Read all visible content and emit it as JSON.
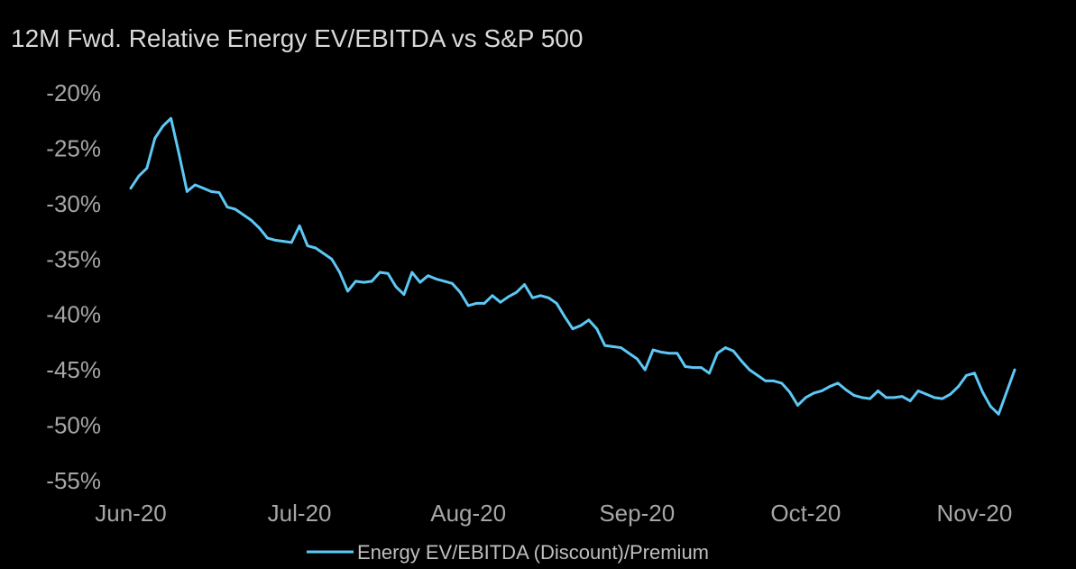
{
  "chart_data": {
    "type": "line",
    "title": "12M Fwd. Relative Energy EV/EBITDA vs S&P 500",
    "xlabel": "",
    "ylabel": "",
    "ylim": [
      -55,
      -20
    ],
    "y_tick_values": [
      -20,
      -25,
      -30,
      -35,
      -40,
      -45,
      -50,
      -55
    ],
    "y_tick_labels": [
      "-20%",
      "-25%",
      "-30%",
      "-35%",
      "-40%",
      "-45%",
      "-50%",
      "-55%"
    ],
    "x_tick_labels": [
      "Jun-20",
      "Jul-20",
      "Aug-20",
      "Sep-20",
      "Oct-20",
      "Nov-20"
    ],
    "x_tick_positions": [
      0,
      21,
      42,
      63,
      84,
      105
    ],
    "xlim": [
      0,
      110
    ],
    "grid": false,
    "legend_position": "bottom-center",
    "series": [
      {
        "name": "Energy EV/EBITDA (Discount)/Premium",
        "color": "#5cc8f5",
        "x": [
          0,
          1,
          2,
          3,
          4,
          5,
          6,
          7,
          8,
          9,
          10,
          11,
          12,
          13,
          14,
          15,
          16,
          17,
          18,
          19,
          20,
          21,
          22,
          23,
          24,
          25,
          26,
          27,
          28,
          29,
          30,
          31,
          32,
          33,
          34,
          35,
          36,
          37,
          38,
          39,
          40,
          41,
          42,
          43,
          44,
          45,
          46,
          47,
          48,
          49,
          50,
          51,
          52,
          53,
          54,
          55,
          56,
          57,
          58,
          59,
          60,
          61,
          62,
          63,
          64,
          65,
          66,
          67,
          68,
          69,
          70,
          71,
          72,
          73,
          74,
          75,
          76,
          77,
          78,
          79,
          80,
          81,
          82,
          83,
          84,
          85,
          86,
          87,
          88,
          89,
          90,
          91,
          92,
          93,
          94,
          95,
          96,
          97,
          98,
          99,
          100,
          101,
          102,
          103,
          104,
          105,
          106,
          107,
          108,
          109,
          110
        ],
        "values": [
          -28.6,
          -27.5,
          -26.8,
          -24.1,
          -23.0,
          -22.3,
          -25.5,
          -28.9,
          -28.3,
          -28.6,
          -28.9,
          -29.0,
          -30.3,
          -30.5,
          -31.0,
          -31.5,
          -32.2,
          -33.1,
          -33.3,
          -33.4,
          -33.5,
          -32.0,
          -33.8,
          -34.0,
          -34.5,
          -35.0,
          -36.2,
          -37.9,
          -37.0,
          -37.1,
          -37.0,
          -36.2,
          -36.3,
          -37.5,
          -38.2,
          -36.2,
          -37.1,
          -36.5,
          -36.8,
          -37.0,
          -37.2,
          -38.0,
          -39.2,
          -39.0,
          -39.0,
          -38.3,
          -38.9,
          -38.4,
          -38.0,
          -37.3,
          -38.5,
          -38.3,
          -38.5,
          -39.0,
          -40.2,
          -41.3,
          -41.0,
          -40.5,
          -41.3,
          -42.8,
          -42.9,
          -43.0,
          -43.5,
          -44.0,
          -45.0,
          -43.2,
          -43.4,
          -43.5,
          -43.5,
          -44.7,
          -44.8,
          -44.8,
          -45.3,
          -43.5,
          -43.0,
          -43.3,
          -44.2,
          -45.0,
          -45.5,
          -46.0,
          -46.0,
          -46.2,
          -47.0,
          -48.2,
          -47.5,
          -47.1,
          -46.9,
          -46.5,
          -46.2,
          -46.8,
          -47.3,
          -47.5,
          -47.6,
          -46.9,
          -47.5,
          -47.5,
          -47.4,
          -47.8,
          -46.9,
          -47.2,
          -47.5,
          -47.6,
          -47.2,
          -46.5,
          -45.5,
          -45.3,
          -47.0,
          -48.3,
          -49.0,
          -47.0,
          -45.0
        ]
      }
    ]
  }
}
